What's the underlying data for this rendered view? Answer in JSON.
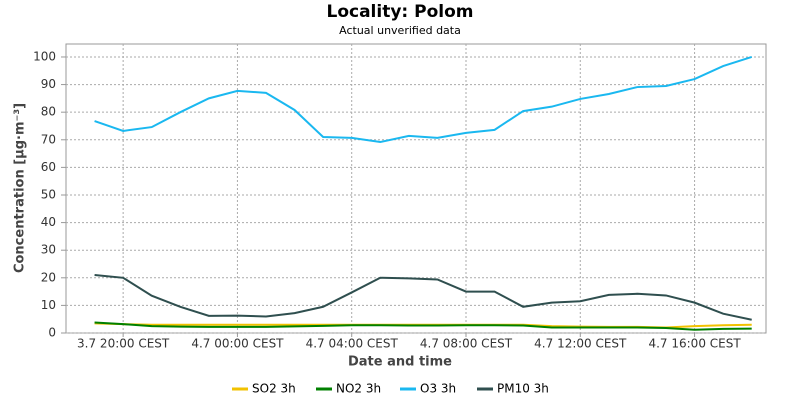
{
  "chart_data": {
    "type": "line",
    "title": "Locality: Polom",
    "subtitle": "Actual unverified data",
    "x_label": "Date and time",
    "y_label": "Concentration [µg·m⁻³]",
    "x": [
      19,
      20,
      21,
      22,
      23,
      24,
      25,
      26,
      27,
      28,
      29,
      30,
      31,
      32,
      33,
      34,
      35,
      36,
      37,
      38,
      39,
      40,
      41,
      42
    ],
    "xlim": [
      18,
      42.5
    ],
    "xticks": [
      {
        "value": 20,
        "label": "3.7 20:00 CEST"
      },
      {
        "value": 24,
        "label": "4.7 00:00 CEST"
      },
      {
        "value": 28,
        "label": "4.7 04:00 CEST"
      },
      {
        "value": 32,
        "label": "4.7 08:00 CEST"
      },
      {
        "value": 36,
        "label": "4.7 12:00 CEST"
      },
      {
        "value": 40,
        "label": "4.7 16:00 CEST"
      }
    ],
    "ylim": [
      0,
      104.7
    ],
    "yticks": [
      0,
      10,
      20,
      30,
      40,
      50,
      60,
      70,
      80,
      90,
      100
    ],
    "grid": true,
    "legend": "bottom",
    "series": [
      {
        "name": "SO2 3h",
        "color": "#f2c200",
        "values": [
          3.5,
          3.2,
          3.0,
          3.0,
          3.0,
          3.0,
          3.0,
          3.0,
          3.0,
          3.0,
          3.0,
          3.0,
          3.0,
          3.0,
          3.0,
          3.0,
          2.5,
          2.3,
          2.2,
          2.2,
          2.0,
          2.5,
          2.8,
          3.0
        ]
      },
      {
        "name": "NO2 3h",
        "color": "#008000",
        "values": [
          3.8,
          3.2,
          2.5,
          2.3,
          2.2,
          2.2,
          2.2,
          2.4,
          2.6,
          2.8,
          2.8,
          2.7,
          2.7,
          2.8,
          2.8,
          2.7,
          2.0,
          2.0,
          2.0,
          2.0,
          1.8,
          1.2,
          1.5,
          1.6
        ]
      },
      {
        "name": "O3 3h",
        "color": "#1ab8f0",
        "values": [
          76.8,
          73.2,
          74.6,
          80,
          85,
          87.7,
          87,
          80.8,
          71,
          70.7,
          69.2,
          71.4,
          70.7,
          72.5,
          73.6,
          80.4,
          82,
          84.8,
          86.6,
          89.1,
          89.5,
          92,
          96.7,
          100
        ]
      },
      {
        "name": "PM10 3h",
        "color": "#2f4f4f",
        "values": [
          21,
          20,
          13.5,
          9.5,
          6.2,
          6.3,
          6.0,
          7.2,
          9.5,
          14.7,
          20,
          19.8,
          19.4,
          15,
          15,
          9.5,
          11,
          11.5,
          13.8,
          14.2,
          13.6,
          11,
          7,
          4.8
        ]
      }
    ]
  }
}
